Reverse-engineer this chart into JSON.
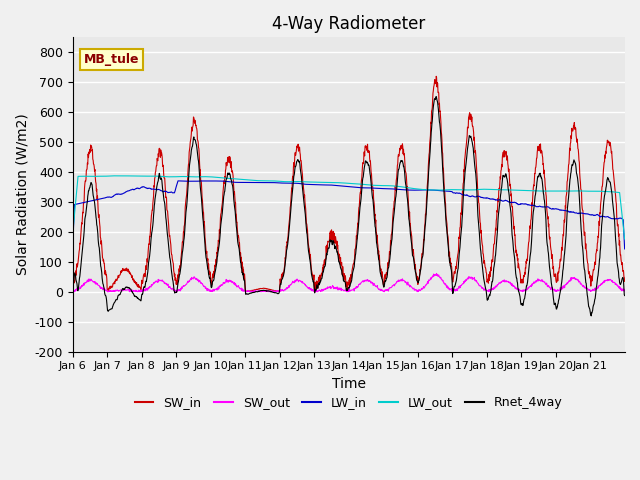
{
  "title": "4-Way Radiometer",
  "xlabel": "Time",
  "ylabel": "Solar Radiation (W/m2)",
  "station_label": "MB_tule",
  "ylim": [
    -200,
    850
  ],
  "yticks": [
    -200,
    -100,
    0,
    100,
    200,
    300,
    400,
    500,
    600,
    700,
    800
  ],
  "n_days": 16,
  "xtick_labels": [
    "Jan 6",
    "Jan 7",
    "Jan 8",
    "Jan 9",
    "Jan 10",
    "Jan 11",
    "Jan 12",
    "Jan 13",
    "Jan 14",
    "Jan 15",
    "Jan 16",
    "Jan 17",
    "Jan 18",
    "Jan 19",
    "Jan 20",
    "Jan 21"
  ],
  "colors": {
    "SW_in": "#cc0000",
    "SW_out": "#ff00ff",
    "LW_in": "#0000cc",
    "LW_out": "#00cccc",
    "Rnet_4way": "#000000"
  },
  "legend_labels": [
    "SW_in",
    "SW_out",
    "LW_in",
    "LW_out",
    "Rnet_4way"
  ],
  "background_color": "#e8e8e8",
  "grid_color": "#ffffff",
  "title_fontsize": 12,
  "label_fontsize": 10,
  "tick_fontsize": 9,
  "seed": 42,
  "peak_scale": [
    0.94,
    0.14,
    0.92,
    1.14,
    0.88,
    0.02,
    0.96,
    0.38,
    0.96,
    0.96,
    1.4,
    1.16,
    0.92,
    0.96,
    1.1,
    1.0
  ]
}
